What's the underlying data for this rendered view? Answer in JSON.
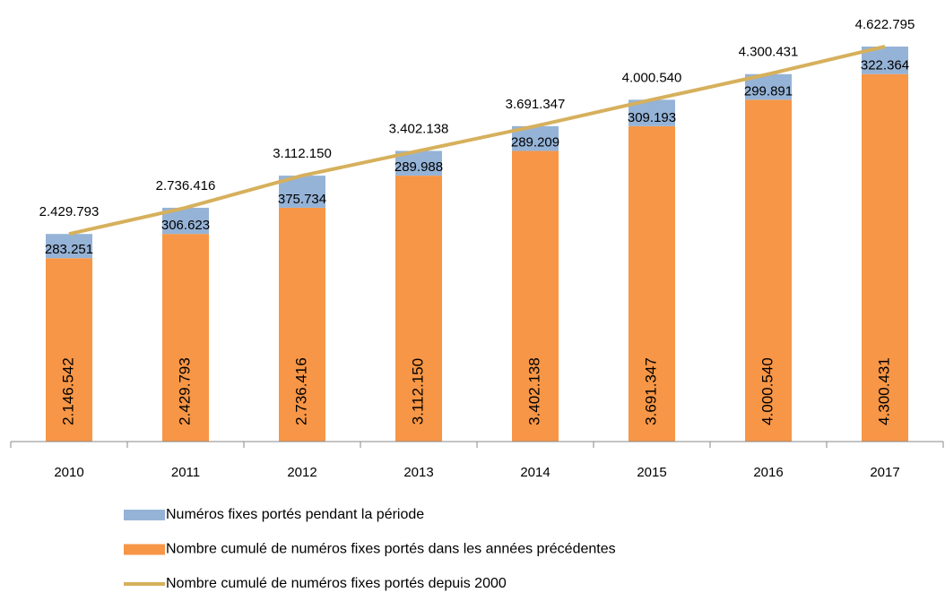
{
  "chart_data": {
    "type": "stacked_bar_line",
    "categories": [
      "2010",
      "2011",
      "2012",
      "2013",
      "2014",
      "2015",
      "2016",
      "2017"
    ],
    "ylim": [
      0,
      5000000
    ],
    "series": [
      {
        "name": "Numéros fixes portés pendant la période",
        "color": "#95b3d7",
        "kind": "bar",
        "values": [
          283251,
          306623,
          375734,
          289988,
          289209,
          309193,
          299891,
          322364
        ],
        "value_labels": [
          "283.251",
          "306.623",
          "375.734",
          "289.988",
          "289.209",
          "309.193",
          "299.891",
          "322.364"
        ]
      },
      {
        "name": "Nombre cumulé de numéros fixes portés dans les années précédentes",
        "color": "#f79646",
        "kind": "bar",
        "values": [
          2146542,
          2429793,
          2736416,
          3112150,
          3402138,
          3691347,
          4000540,
          4300431
        ],
        "value_labels": [
          "2.146.542",
          "2.429.793",
          "2.736.416",
          "3.112.150",
          "3.402.138",
          "3.691.347",
          "4.000.540",
          "4.300.431"
        ]
      },
      {
        "name": "Nombre cumulé de numéros fixes portés depuis 2000",
        "color": "#d6b05c",
        "kind": "line",
        "values": [
          2429793,
          2736416,
          3112150,
          3402138,
          3691347,
          4000540,
          4300431,
          4622795
        ],
        "value_labels": [
          "2.429.793",
          "2.736.416",
          "3.112.150",
          "3.402.138",
          "3.691.347",
          "4.000.540",
          "4.300.431",
          "4.622.795"
        ]
      }
    ]
  }
}
